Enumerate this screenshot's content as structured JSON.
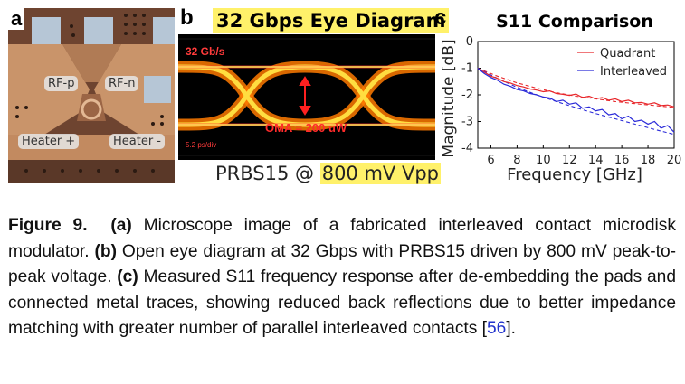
{
  "panel_a": {
    "letter": "a",
    "labels": {
      "rf_p": "RF-p",
      "rf_n": "RF-n",
      "heater_plus": "Heater +",
      "heater_minus": "Heater -"
    }
  },
  "panel_b": {
    "letter": "b",
    "title": "32 Gbps Eye Diagram",
    "rate_label": "32 Gb/s",
    "oma_label": "OMA = 200 uW",
    "timebase_label": "5.2 ps/div",
    "subtitle_prefix": "PRBS15 @ ",
    "subtitle_highlight": "800 mV Vpp"
  },
  "panel_c": {
    "letter": "c"
  },
  "chart_data": {
    "type": "line",
    "title": "S11 Comparison",
    "xlabel": "Frequency [GHz]",
    "ylabel": "Magnitude [dB]",
    "xlim": [
      5,
      20
    ],
    "ylim": [
      -4,
      0
    ],
    "xticks": [
      6,
      8,
      10,
      12,
      14,
      16,
      18,
      20
    ],
    "yticks": [
      0,
      -1,
      -2,
      -3,
      -4
    ],
    "legend_position": "top-right",
    "series": [
      {
        "name": "Quadrant",
        "color": "#e8262a",
        "x": [
          5,
          5.5,
          6,
          6.5,
          7,
          7.5,
          8,
          8.5,
          9,
          9.5,
          10,
          10.5,
          11,
          11.5,
          12,
          12.5,
          13,
          13.5,
          14,
          14.5,
          15,
          15.5,
          16,
          16.5,
          17,
          17.5,
          18,
          18.5,
          19,
          19.5,
          20
        ],
        "y": [
          -1.0,
          -1.15,
          -1.3,
          -1.38,
          -1.5,
          -1.56,
          -1.65,
          -1.7,
          -1.78,
          -1.82,
          -1.88,
          -1.85,
          -1.95,
          -1.98,
          -2.02,
          -1.97,
          -2.1,
          -2.05,
          -2.15,
          -2.1,
          -2.2,
          -2.15,
          -2.25,
          -2.2,
          -2.3,
          -2.28,
          -2.35,
          -2.3,
          -2.4,
          -2.38,
          -2.45
        ]
      },
      {
        "name": "Interleaved",
        "color": "#2a2ad8",
        "x": [
          5,
          5.5,
          6,
          6.5,
          7,
          7.5,
          8,
          8.5,
          9,
          9.5,
          10,
          10.5,
          11,
          11.5,
          12,
          12.5,
          13,
          13.5,
          14,
          14.5,
          15,
          15.5,
          16,
          16.5,
          17,
          17.5,
          18,
          18.5,
          19,
          19.5,
          20
        ],
        "y": [
          -1.0,
          -1.2,
          -1.35,
          -1.45,
          -1.6,
          -1.68,
          -1.8,
          -1.85,
          -1.95,
          -2.0,
          -2.08,
          -2.12,
          -2.25,
          -2.2,
          -2.35,
          -2.3,
          -2.5,
          -2.45,
          -2.6,
          -2.55,
          -2.75,
          -2.7,
          -2.9,
          -2.8,
          -3.0,
          -2.95,
          -3.1,
          -3.0,
          -3.25,
          -3.15,
          -3.4
        ]
      }
    ],
    "fit_curves": [
      {
        "color": "#e8262a",
        "style": "dashed",
        "x": [
          5,
          6.5,
          8,
          9.5,
          11,
          12.5,
          14,
          15.5,
          17,
          18.5,
          20
        ],
        "y": [
          -1.0,
          -1.3,
          -1.55,
          -1.75,
          -1.92,
          -2.05,
          -2.15,
          -2.25,
          -2.33,
          -2.4,
          -2.47
        ]
      },
      {
        "color": "#2a2ad8",
        "style": "dashed",
        "x": [
          5,
          6.5,
          8,
          9.5,
          11,
          12.5,
          14,
          15.5,
          17,
          18.5,
          20
        ],
        "y": [
          -1.0,
          -1.38,
          -1.72,
          -2.0,
          -2.25,
          -2.48,
          -2.7,
          -2.9,
          -3.1,
          -3.3,
          -3.48
        ]
      }
    ]
  },
  "caption": {
    "label": "Figure 9.",
    "a_tag": "(a)",
    "a_text": " Microscope image of a fabricated interleaved contact microdisk modulator. ",
    "b_tag": "(b)",
    "b_text": " Open eye diagram at 32 Gbps with PRBS15 driven by 800 mV peak-to-peak voltage. ",
    "c_tag": "(c)",
    "c_text": " Measured S11 frequency response after de-embedding the pads and connected metal traces, showing reduced back reflections due to better impedance matching with greater number of parallel interleaved contacts [",
    "citation": "56",
    "end": "]."
  }
}
